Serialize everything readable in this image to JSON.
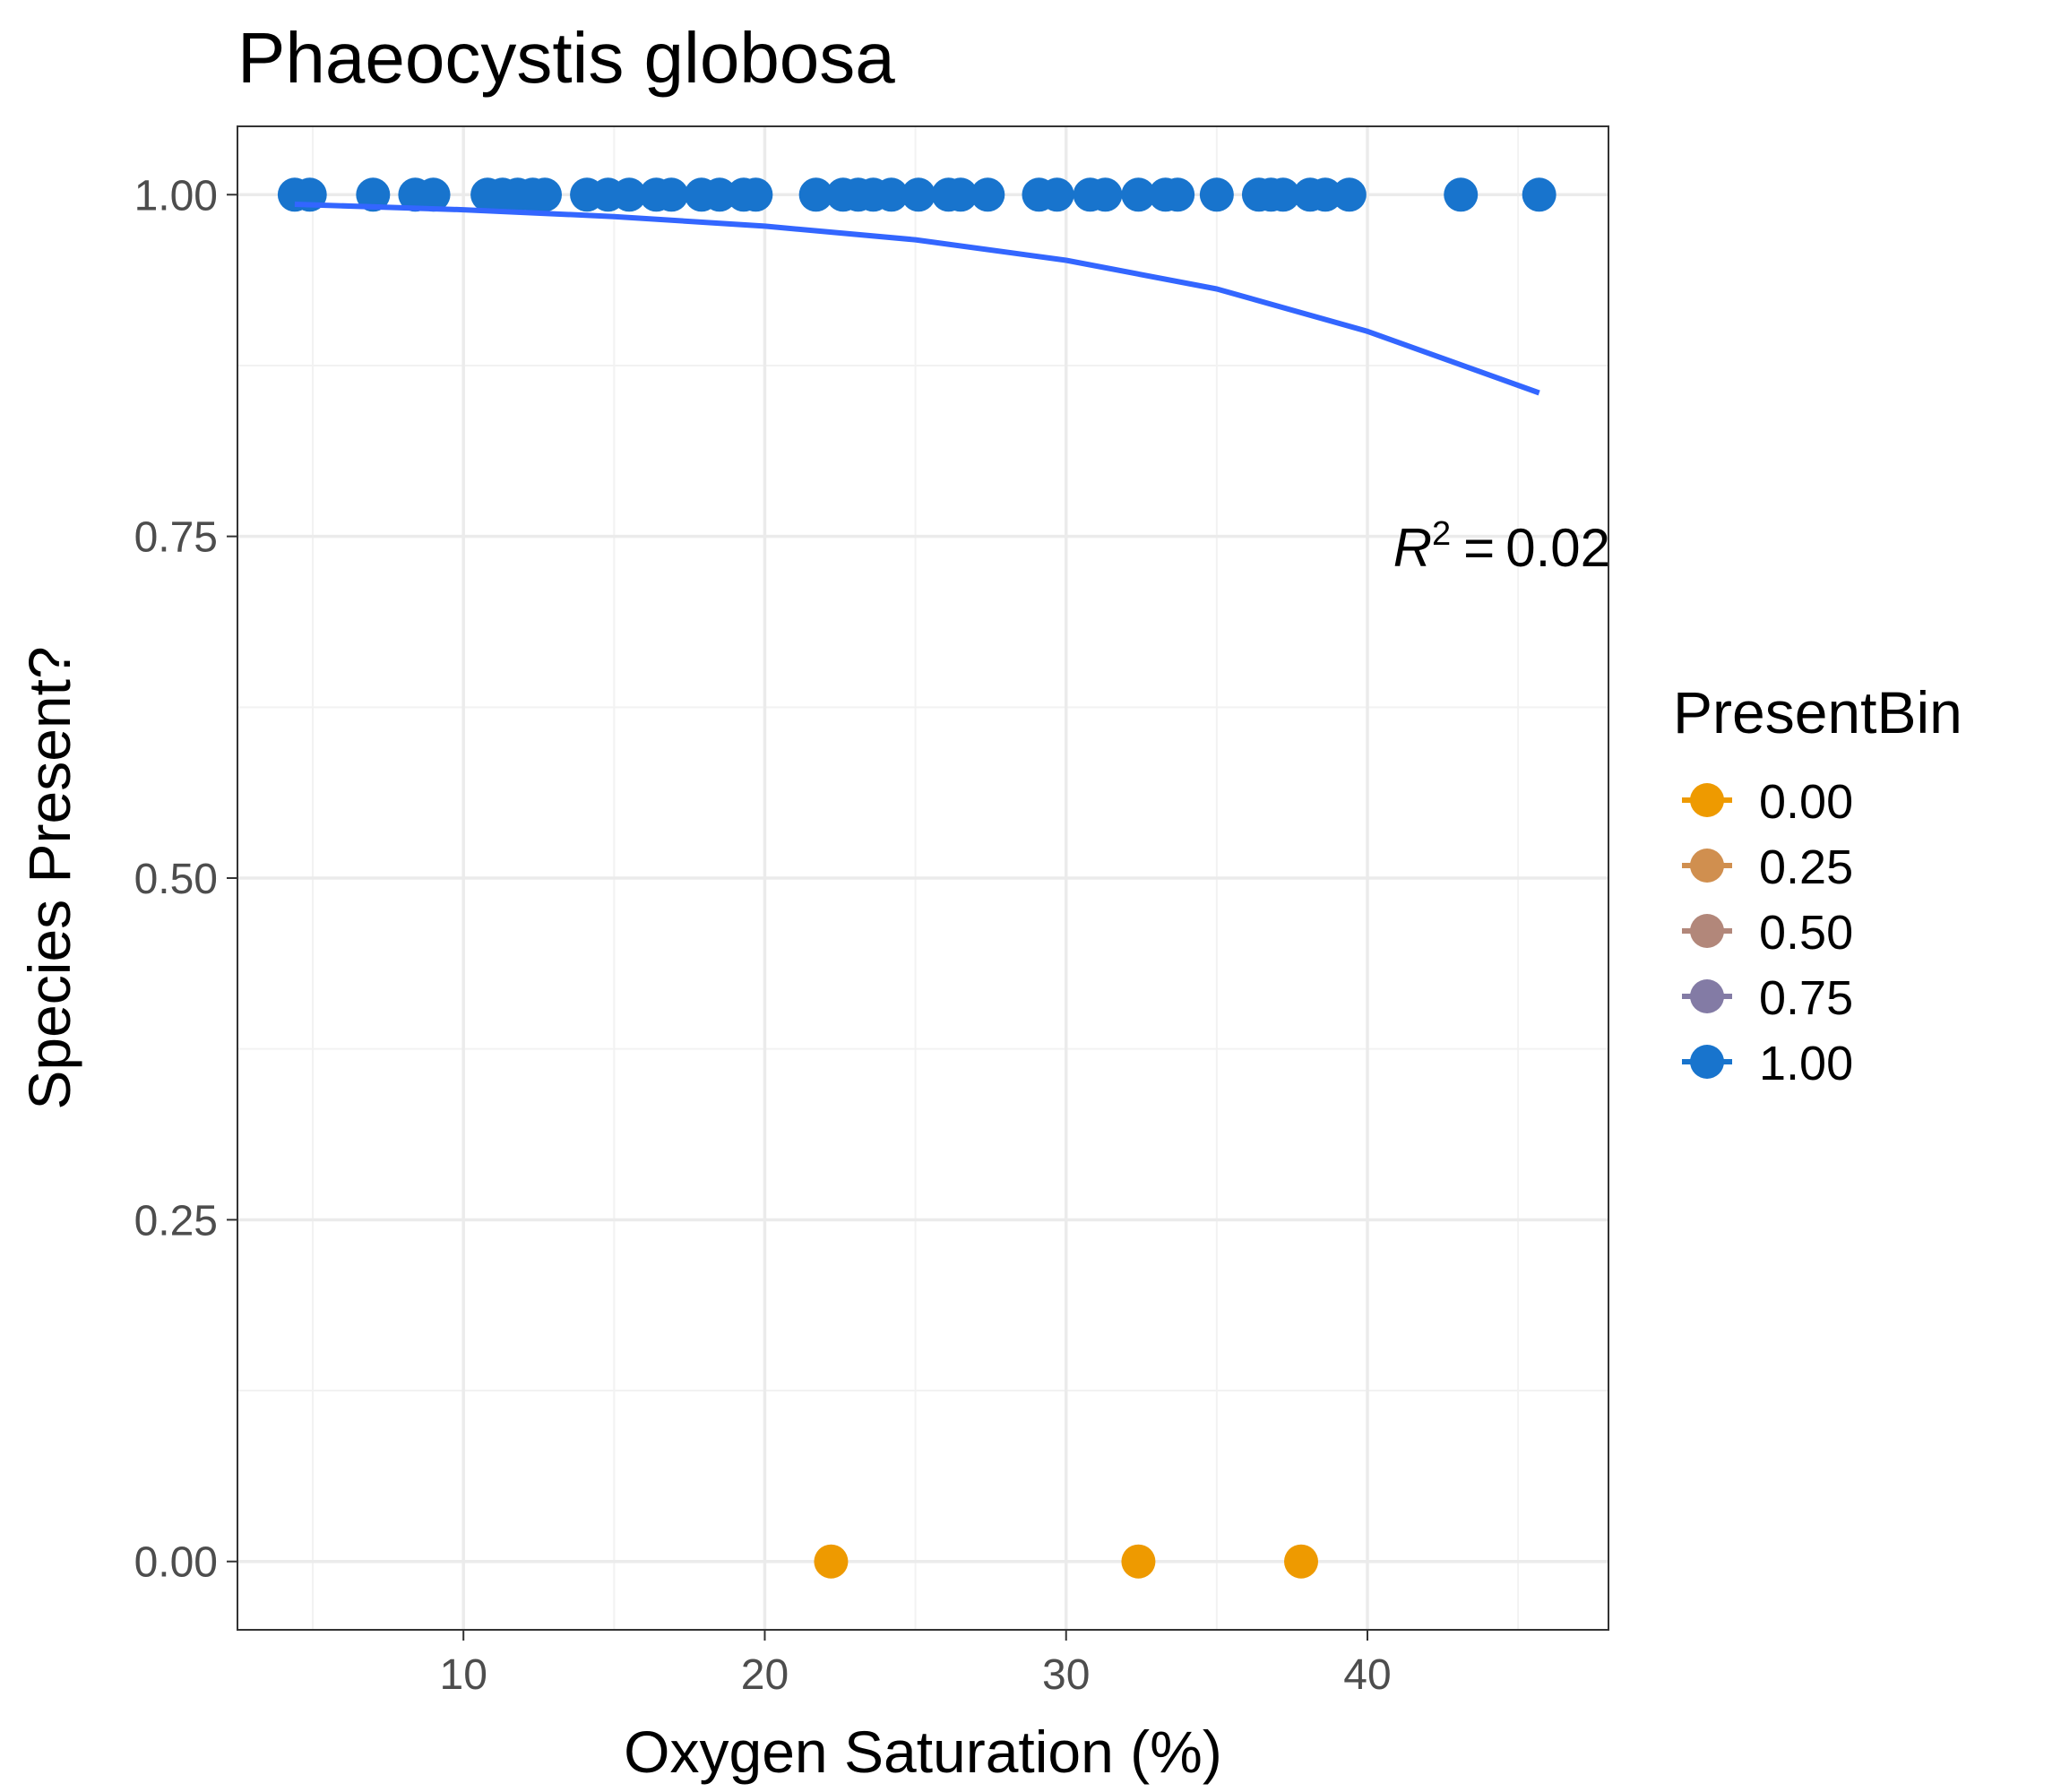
{
  "chart_data": {
    "type": "scatter",
    "title": "Phaeocystis globosa",
    "xlabel": "Oxygen Saturation (%)",
    "ylabel": "Species Present?",
    "xlim": [
      2.5,
      48.0
    ],
    "ylim": [
      -0.05,
      1.05
    ],
    "x_ticks": [
      10,
      20,
      30,
      40
    ],
    "y_ticks": [
      0.0,
      0.25,
      0.5,
      0.75,
      1.0
    ],
    "x_tick_labels": [
      "10",
      "20",
      "30",
      "40"
    ],
    "y_tick_labels": [
      "0.00",
      "0.25",
      "0.50",
      "0.75",
      "1.00"
    ],
    "grid": true,
    "legend": {
      "title": "PresentBin",
      "placement": "right",
      "entries": [
        {
          "label": "0.00",
          "value": 0.0,
          "color": "#EE9A00"
        },
        {
          "label": "0.25",
          "value": 0.25,
          "color": "#D08F4F"
        },
        {
          "label": "0.50",
          "value": 0.5,
          "color": "#B2877A"
        },
        {
          "label": "0.75",
          "value": 0.75,
          "color": "#837BA5"
        },
        {
          "label": "1.00",
          "value": 1.0,
          "color": "#1874CD"
        }
      ]
    },
    "points": [
      {
        "x": 4.4,
        "y": 1
      },
      {
        "x": 4.9,
        "y": 1
      },
      {
        "x": 7.0,
        "y": 1
      },
      {
        "x": 8.4,
        "y": 1
      },
      {
        "x": 9.0,
        "y": 1
      },
      {
        "x": 10.8,
        "y": 1
      },
      {
        "x": 11.3,
        "y": 1
      },
      {
        "x": 11.8,
        "y": 1
      },
      {
        "x": 12.3,
        "y": 1
      },
      {
        "x": 12.7,
        "y": 1
      },
      {
        "x": 14.1,
        "y": 1
      },
      {
        "x": 14.8,
        "y": 1
      },
      {
        "x": 15.5,
        "y": 1
      },
      {
        "x": 16.4,
        "y": 1
      },
      {
        "x": 16.9,
        "y": 1
      },
      {
        "x": 17.9,
        "y": 1
      },
      {
        "x": 18.5,
        "y": 1
      },
      {
        "x": 19.3,
        "y": 1
      },
      {
        "x": 19.7,
        "y": 1
      },
      {
        "x": 21.7,
        "y": 1
      },
      {
        "x": 22.6,
        "y": 1
      },
      {
        "x": 23.1,
        "y": 1
      },
      {
        "x": 23.6,
        "y": 1
      },
      {
        "x": 24.2,
        "y": 1
      },
      {
        "x": 25.1,
        "y": 1
      },
      {
        "x": 26.1,
        "y": 1
      },
      {
        "x": 26.5,
        "y": 1
      },
      {
        "x": 27.4,
        "y": 1
      },
      {
        "x": 29.1,
        "y": 1
      },
      {
        "x": 29.7,
        "y": 1
      },
      {
        "x": 30.8,
        "y": 1
      },
      {
        "x": 31.3,
        "y": 1
      },
      {
        "x": 32.4,
        "y": 1
      },
      {
        "x": 33.3,
        "y": 1
      },
      {
        "x": 33.7,
        "y": 1
      },
      {
        "x": 35.0,
        "y": 1
      },
      {
        "x": 36.4,
        "y": 1
      },
      {
        "x": 36.8,
        "y": 1
      },
      {
        "x": 37.2,
        "y": 1
      },
      {
        "x": 38.1,
        "y": 1
      },
      {
        "x": 38.6,
        "y": 1
      },
      {
        "x": 39.4,
        "y": 1
      },
      {
        "x": 43.1,
        "y": 1
      },
      {
        "x": 45.7,
        "y": 1
      },
      {
        "x": 22.2,
        "y": 0
      },
      {
        "x": 32.4,
        "y": 0
      },
      {
        "x": 37.8,
        "y": 0
      }
    ],
    "fit_line": {
      "color": "#3366FF",
      "x": [
        4.4,
        10,
        15,
        20,
        25,
        30,
        35,
        40,
        45.7
      ],
      "y": [
        0.993,
        0.989,
        0.984,
        0.977,
        0.967,
        0.952,
        0.931,
        0.9,
        0.855
      ]
    },
    "annotation": {
      "symbol": "R",
      "exponent": "2",
      "equals": "=",
      "value": "0.02"
    }
  }
}
